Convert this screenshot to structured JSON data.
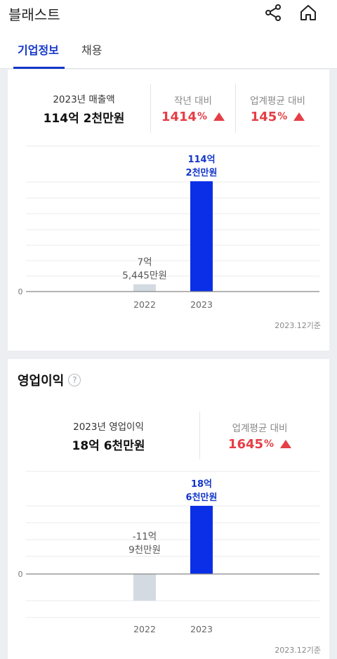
{
  "header": {
    "title": "블래스트",
    "share_icon": "share-icon",
    "home_icon": "home-icon"
  },
  "tabs": [
    {
      "label": "기업정보",
      "active": true
    },
    {
      "label": "채용",
      "active": false
    }
  ],
  "revenue": {
    "summary_label": "2023년 매출액",
    "summary_value": "114억 2천만원",
    "yoy_label": "작년 대비",
    "yoy_value": "1414",
    "yoy_unit": "%",
    "industry_label": "업계평균 대비",
    "industry_value": "145",
    "industry_unit": "%",
    "footnote": "2023.12기준"
  },
  "operating_profit": {
    "title": "영업이익",
    "help_icon": "help-icon",
    "summary_label": "2023년 영업이익",
    "summary_value": "18억 6천만원",
    "industry_label": "업계평균 대비",
    "industry_value": "1645",
    "industry_unit": "%",
    "footnote": "2023.12기준"
  },
  "colors": {
    "accent": "#1336c9",
    "bar_current": "#0a2fe6",
    "bar_previous": "#d3dae2",
    "increase": "#e53e45"
  },
  "chart_data": [
    {
      "type": "bar",
      "categories": [
        "2022",
        "2023"
      ],
      "values": [
        75445,
        1142000
      ],
      "value_labels": [
        [
          "7억",
          "5,445만원"
        ],
        [
          "114억",
          "2천만원"
        ]
      ],
      "unit": "만원",
      "zero_label": "0",
      "ylim": [
        0,
        1142000
      ]
    },
    {
      "type": "bar",
      "categories": [
        "2022",
        "2023"
      ],
      "values": [
        -119000,
        186000
      ],
      "value_labels": [
        [
          "-11억",
          "9천만원"
        ],
        [
          "18억",
          "6천만원"
        ]
      ],
      "unit": "만원",
      "zero_label": "0",
      "ylim": [
        -119000,
        186000
      ]
    }
  ]
}
